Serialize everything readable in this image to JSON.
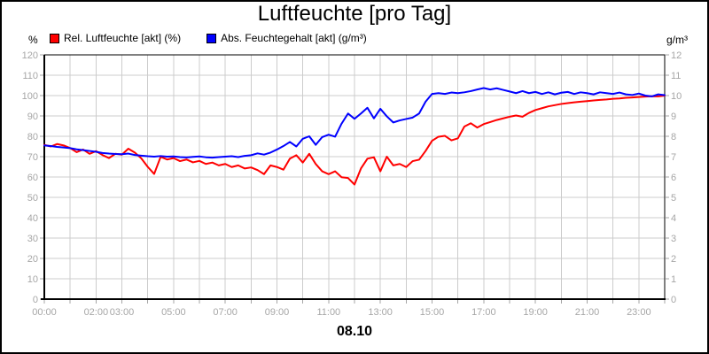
{
  "title": "Luftfeuchte [pro Tag]",
  "date_label": "08.10",
  "legend": [
    {
      "label": "Rel. Luftfeuchte [akt] (%)",
      "color": "#ff0000"
    },
    {
      "label": "Abs. Feuchtegehalt [akt] (g/m³)",
      "color": "#0000ff"
    }
  ],
  "axes": {
    "left_unit": "%",
    "right_unit": "g/m³",
    "left_ticks": [
      0,
      10,
      20,
      30,
      40,
      50,
      60,
      70,
      80,
      90,
      100,
      110,
      120
    ],
    "right_ticks": [
      0,
      1,
      2,
      3,
      4,
      5,
      6,
      7,
      8,
      9,
      10,
      11,
      12
    ],
    "x_labels": [
      {
        "hour": 0,
        "text": "00:00"
      },
      {
        "hour": 2,
        "text": "02:00"
      },
      {
        "hour": 3,
        "text": "03:00"
      },
      {
        "hour": 5,
        "text": "05:00"
      },
      {
        "hour": 7,
        "text": "07:00"
      },
      {
        "hour": 9,
        "text": "09:00"
      },
      {
        "hour": 11,
        "text": "11:00"
      },
      {
        "hour": 13,
        "text": "13:00"
      },
      {
        "hour": 15,
        "text": "15:00"
      },
      {
        "hour": 17,
        "text": "17:00"
      },
      {
        "hour": 19,
        "text": "19:00"
      },
      {
        "hour": 21,
        "text": "21:00"
      },
      {
        "hour": 23,
        "text": "23:00"
      }
    ]
  },
  "colors": {
    "background": "#ffffff",
    "axis": "#000000",
    "grid": "#cccccc",
    "tick_label": "#a6a6a6",
    "red_series": "#ff0000",
    "blue_series": "#0000ff"
  },
  "chart_data": {
    "type": "line",
    "title": "Luftfeuchte [pro Tag]",
    "date": "08.10",
    "x_unit": "hours",
    "xlim": [
      0,
      24
    ],
    "left_ylim": [
      0,
      120
    ],
    "right_ylim": [
      0,
      12
    ],
    "grid": true,
    "legend_position": "top-left",
    "x": [
      0,
      0.25,
      0.5,
      0.75,
      1,
      1.25,
      1.5,
      1.75,
      2,
      2.25,
      2.5,
      2.75,
      3,
      3.25,
      3.5,
      3.75,
      4,
      4.25,
      4.5,
      4.75,
      5,
      5.25,
      5.5,
      5.75,
      6,
      6.25,
      6.5,
      6.75,
      7,
      7.25,
      7.5,
      7.75,
      8,
      8.25,
      8.5,
      8.75,
      9,
      9.25,
      9.5,
      9.75,
      10,
      10.25,
      10.5,
      10.75,
      11,
      11.25,
      11.5,
      11.75,
      12,
      12.25,
      12.5,
      12.75,
      13,
      13.25,
      13.5,
      13.75,
      14,
      14.25,
      14.5,
      14.75,
      15,
      15.25,
      15.5,
      15.75,
      16,
      16.25,
      16.5,
      16.75,
      17,
      17.25,
      17.5,
      17.75,
      18,
      18.25,
      18.5,
      18.75,
      19,
      19.25,
      19.5,
      19.75,
      20,
      20.25,
      20.5,
      20.75,
      21,
      21.25,
      21.5,
      21.75,
      22,
      22.25,
      22.5,
      22.75,
      23,
      23.25,
      23.5,
      23.75,
      24
    ],
    "series": [
      {
        "name": "Rel. Luftfeuchte [akt] (%)",
        "axis": "left",
        "unit": "%",
        "color": "#ff0000",
        "values": [
          75.8,
          75.0,
          76.2,
          75.5,
          74.2,
          72.2,
          73.5,
          71.4,
          72.7,
          70.8,
          69.3,
          71.4,
          71.0,
          73.9,
          72.0,
          69.2,
          65.0,
          61.5,
          69.9,
          68.6,
          69.3,
          67.8,
          68.6,
          67.2,
          67.9,
          66.4,
          67.1,
          65.7,
          66.4,
          64.9,
          65.7,
          64.2,
          64.7,
          63.4,
          61.4,
          65.7,
          64.9,
          63.6,
          69.0,
          70.7,
          67.1,
          71.4,
          66.4,
          62.8,
          61.4,
          62.8,
          59.9,
          59.5,
          56.3,
          64.2,
          69.0,
          69.7,
          62.8,
          70.0,
          65.7,
          66.4,
          64.9,
          67.8,
          68.5,
          72.8,
          77.8,
          79.8,
          80.2,
          78.0,
          79.0,
          84.8,
          86.4,
          84.3,
          86.0,
          87.0,
          88.0,
          88.8,
          89.6,
          90.2,
          89.6,
          91.5,
          92.9,
          93.8,
          94.7,
          95.3,
          95.9,
          96.3,
          96.7,
          97.0,
          97.3,
          97.6,
          97.9,
          98.1,
          98.4,
          98.6,
          98.9,
          99.1,
          99.3,
          99.5,
          99.7,
          99.6,
          100.0
        ]
      },
      {
        "name": "Abs. Feuchtegehalt [akt] (g/m³)",
        "axis": "right",
        "unit": "g/m³",
        "color": "#0000ff",
        "values": [
          7.55,
          7.52,
          7.48,
          7.45,
          7.42,
          7.36,
          7.32,
          7.28,
          7.24,
          7.18,
          7.15,
          7.13,
          7.12,
          7.15,
          7.08,
          7.05,
          7.02,
          7.0,
          7.03,
          7.0,
          7.01,
          6.98,
          6.96,
          6.99,
          7.01,
          6.97,
          6.95,
          6.98,
          7.0,
          7.02,
          6.98,
          7.04,
          7.07,
          7.16,
          7.1,
          7.2,
          7.35,
          7.52,
          7.72,
          7.5,
          7.88,
          8.0,
          7.58,
          7.96,
          8.08,
          7.98,
          8.62,
          9.12,
          8.86,
          9.12,
          9.4,
          8.88,
          9.35,
          8.98,
          8.68,
          8.78,
          8.85,
          8.92,
          9.12,
          9.7,
          10.08,
          10.12,
          10.08,
          10.15,
          10.12,
          10.16,
          10.22,
          10.3,
          10.37,
          10.3,
          10.36,
          10.28,
          10.2,
          10.12,
          10.22,
          10.12,
          10.18,
          10.08,
          10.16,
          10.06,
          10.14,
          10.18,
          10.08,
          10.16,
          10.12,
          10.06,
          10.16,
          10.12,
          10.08,
          10.15,
          10.06,
          10.03,
          10.1,
          10.0,
          9.96,
          10.06,
          10.02
        ]
      }
    ]
  }
}
